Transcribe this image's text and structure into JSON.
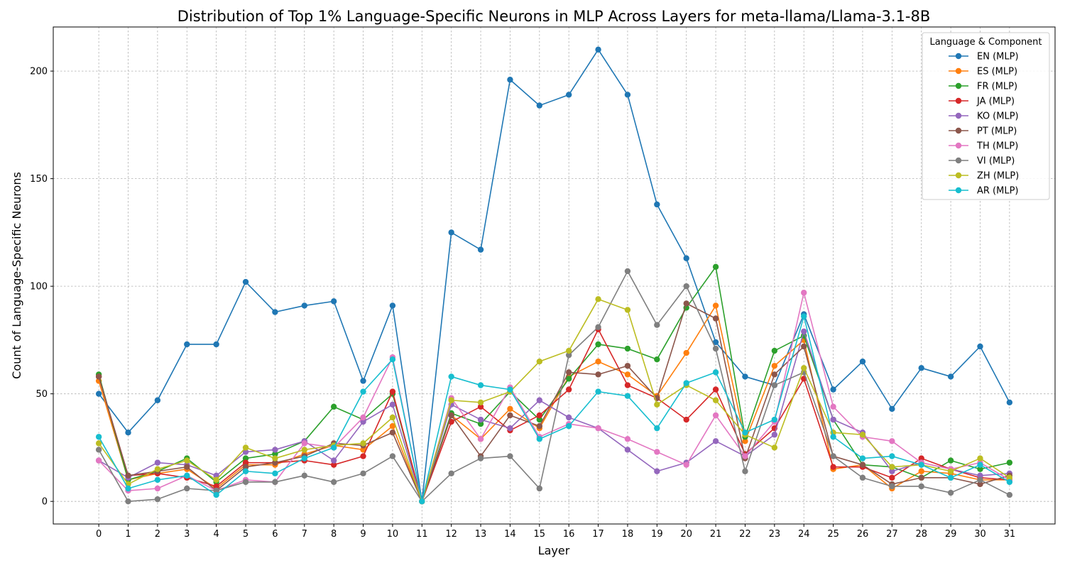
{
  "chart_data": {
    "type": "line",
    "title": "Distribution of Top 1% Language-Specific Neurons in MLP Across Layers for meta-llama/Llama-3.1-8B",
    "xlabel": "Layer",
    "ylabel": "Count of Language-Specific Neurons",
    "x": [
      0,
      1,
      2,
      3,
      4,
      5,
      6,
      7,
      8,
      9,
      10,
      11,
      12,
      13,
      14,
      15,
      16,
      17,
      18,
      19,
      20,
      21,
      22,
      23,
      24,
      25,
      26,
      27,
      28,
      29,
      30,
      31
    ],
    "xlim": [
      -1.55,
      32.55
    ],
    "ylim": [
      -10.5,
      220.5
    ],
    "yticks": [
      0,
      50,
      100,
      150,
      200
    ],
    "grid": true,
    "legend": {
      "title": "Language & Component",
      "position": "top-right"
    },
    "series": [
      {
        "name": "EN (MLP)",
        "color": "#1f77b4",
        "values": [
          50,
          32,
          47,
          73,
          73,
          102,
          88,
          91,
          93,
          56,
          91,
          0,
          125,
          117,
          196,
          184,
          189,
          210,
          189,
          138,
          113,
          74,
          58,
          54,
          87,
          52,
          65,
          43,
          62,
          58,
          72,
          46
        ]
      },
      {
        "name": "ES (MLP)",
        "color": "#ff7f0e",
        "values": [
          56,
          10,
          13,
          15,
          6,
          17,
          17,
          22,
          26,
          24,
          35,
          0,
          40,
          29,
          43,
          34,
          58,
          65,
          59,
          49,
          69,
          91,
          28,
          63,
          75,
          15,
          17,
          6,
          14,
          13,
          10,
          10
        ]
      },
      {
        "name": "FR (MLP)",
        "color": "#2ca02c",
        "values": [
          59,
          10,
          14,
          20,
          9,
          20,
          22,
          28,
          44,
          38,
          50,
          0,
          41,
          36,
          51,
          38,
          57,
          73,
          71,
          66,
          90,
          109,
          30,
          70,
          77,
          38,
          17,
          16,
          11,
          19,
          15,
          18
        ]
      },
      {
        "name": "JA (MLP)",
        "color": "#d62728",
        "values": [
          58,
          12,
          13,
          11,
          7,
          18,
          18,
          19,
          17,
          21,
          51,
          0,
          37,
          44,
          33,
          40,
          52,
          80,
          54,
          48,
          38,
          52,
          22,
          34,
          57,
          16,
          16,
          11,
          20,
          15,
          11,
          10
        ]
      },
      {
        "name": "KO (MLP)",
        "color": "#9467bd",
        "values": [
          19,
          11,
          18,
          17,
          12,
          23,
          24,
          28,
          19,
          37,
          45,
          0,
          45,
          38,
          34,
          47,
          39,
          34,
          24,
          14,
          18,
          28,
          21,
          31,
          79,
          38,
          32,
          14,
          18,
          15,
          12,
          13
        ]
      },
      {
        "name": "PT (MLP)",
        "color": "#8c564b",
        "values": [
          58,
          12,
          14,
          16,
          5,
          16,
          18,
          21,
          27,
          26,
          32,
          0,
          40,
          21,
          40,
          35,
          60,
          59,
          63,
          48,
          92,
          85,
          20,
          59,
          72,
          21,
          17,
          8,
          11,
          11,
          8,
          12
        ]
      },
      {
        "name": "TH (MLP)",
        "color": "#e377c2",
        "values": [
          19,
          5,
          6,
          12,
          5,
          10,
          9,
          27,
          25,
          39,
          67,
          0,
          48,
          29,
          53,
          30,
          36,
          34,
          29,
          23,
          17,
          40,
          21,
          37,
          97,
          44,
          30,
          28,
          18,
          15,
          18,
          10
        ]
      },
      {
        "name": "VI (MLP)",
        "color": "#7f7f7f",
        "values": [
          24,
          0,
          1,
          6,
          5,
          9,
          9,
          12,
          9,
          13,
          21,
          0,
          13,
          20,
          21,
          6,
          68,
          81,
          107,
          82,
          100,
          71,
          14,
          54,
          60,
          21,
          11,
          7,
          7,
          4,
          10,
          3
        ]
      },
      {
        "name": "ZH (MLP)",
        "color": "#bcbd22",
        "values": [
          27,
          8,
          15,
          19,
          10,
          25,
          20,
          24,
          26,
          27,
          39,
          0,
          47,
          46,
          51,
          65,
          70,
          94,
          89,
          45,
          54,
          47,
          31,
          25,
          62,
          32,
          31,
          16,
          17,
          14,
          20,
          11
        ]
      },
      {
        "name": "AR (MLP)",
        "color": "#17becf",
        "values": [
          30,
          6,
          10,
          12,
          3,
          14,
          13,
          20,
          25,
          51,
          66,
          0,
          58,
          54,
          52,
          29,
          35,
          51,
          49,
          34,
          55,
          60,
          32,
          38,
          86,
          30,
          20,
          21,
          17,
          11,
          17,
          9
        ]
      }
    ]
  }
}
